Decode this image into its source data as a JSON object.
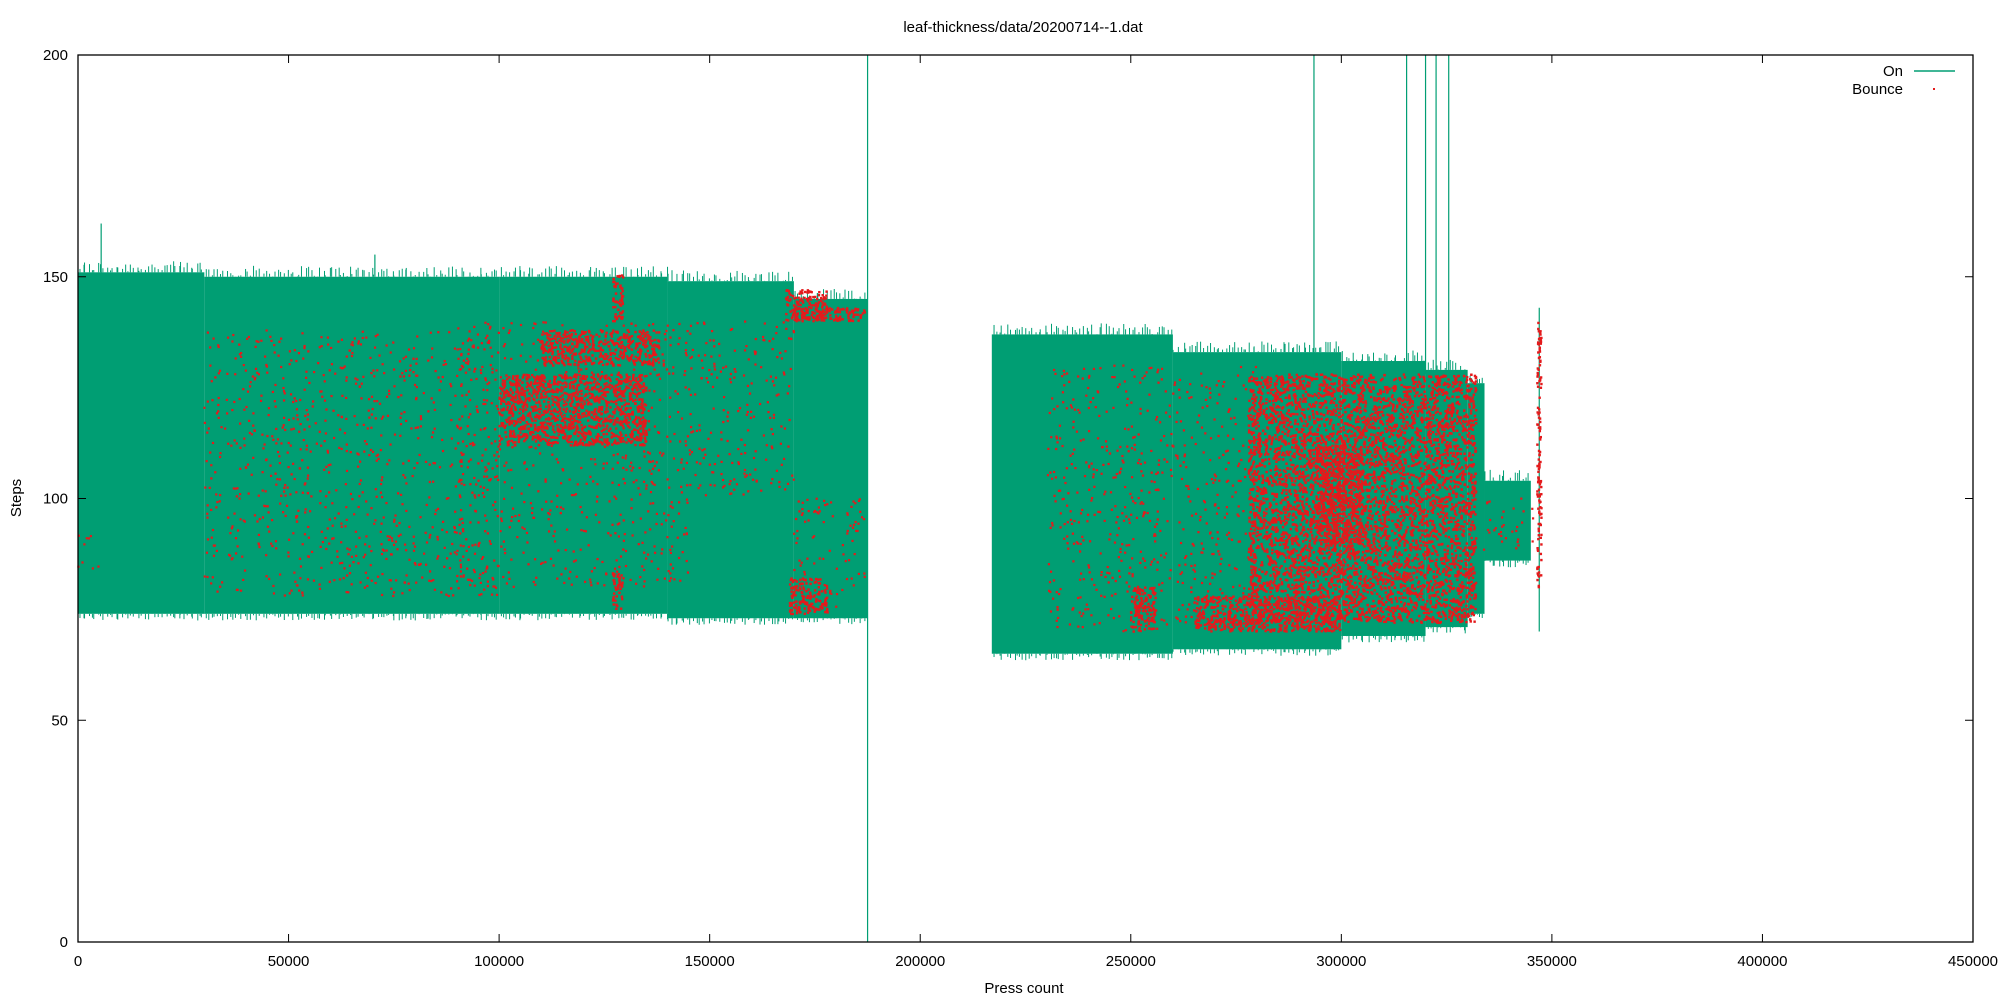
{
  "chart_data": {
    "type": "scatter",
    "title": "leaf-thickness/data/20200714--1.dat",
    "xlabel": "Press count",
    "ylabel": "Steps",
    "xlim": [
      0,
      450000
    ],
    "ylim": [
      0,
      200
    ],
    "x_ticks": [
      0,
      50000,
      100000,
      150000,
      200000,
      250000,
      300000,
      350000,
      400000,
      450000
    ],
    "y_ticks": [
      0,
      50,
      100,
      150,
      200
    ],
    "x_tick_labels": [
      "0",
      "50000",
      "100000",
      "150000",
      "200000",
      "250000",
      "300000",
      "350000",
      "400000",
      "450000"
    ],
    "y_tick_labels": [
      "0",
      "50",
      "100",
      "150",
      "200"
    ],
    "grid": false,
    "legend_position": "top-right",
    "series": [
      {
        "name": "On",
        "style": "lines",
        "color": "#009e73",
        "bands": [
          {
            "x_start": 0,
            "x_end": 30000,
            "y_low": 74,
            "y_high": 151
          },
          {
            "x_start": 30000,
            "x_end": 100000,
            "y_low": 74,
            "y_high": 150
          },
          {
            "x_start": 100000,
            "x_end": 140000,
            "y_low": 74,
            "y_high": 150
          },
          {
            "x_start": 140000,
            "x_end": 170000,
            "y_low": 73,
            "y_high": 149
          },
          {
            "x_start": 170000,
            "x_end": 187500,
            "y_low": 73,
            "y_high": 145
          },
          {
            "x_start": 217000,
            "x_end": 260000,
            "y_low": 65,
            "y_high": 137
          },
          {
            "x_start": 260000,
            "x_end": 300000,
            "y_low": 66,
            "y_high": 133
          },
          {
            "x_start": 300000,
            "x_end": 320000,
            "y_low": 69,
            "y_high": 131
          },
          {
            "x_start": 320000,
            "x_end": 330000,
            "y_low": 71,
            "y_high": 129
          },
          {
            "x_start": 330000,
            "x_end": 334000,
            "y_low": 74,
            "y_high": 126
          },
          {
            "x_start": 334000,
            "x_end": 345000,
            "y_low": 86,
            "y_high": 104
          }
        ],
        "spikes": [
          {
            "x": 5500,
            "y_low": 150,
            "y_high": 162
          },
          {
            "x": 70500,
            "y_low": 150,
            "y_high": 155
          },
          {
            "x": 187500,
            "y_low": 0,
            "y_high": 200
          },
          {
            "x": 293500,
            "y_low": 130,
            "y_high": 200
          },
          {
            "x": 315500,
            "y_low": 128,
            "y_high": 200
          },
          {
            "x": 320000,
            "y_low": 128,
            "y_high": 200
          },
          {
            "x": 322500,
            "y_low": 128,
            "y_high": 200
          },
          {
            "x": 325500,
            "y_low": 128,
            "y_high": 200
          },
          {
            "x": 347000,
            "y_low": 70,
            "y_high": 143
          }
        ]
      },
      {
        "name": "Bounce",
        "style": "points",
        "color": "#e41a1c",
        "regions": [
          {
            "x_start": 100000,
            "x_end": 135000,
            "y_low": 112,
            "y_high": 128
          },
          {
            "x_start": 110000,
            "x_end": 138000,
            "y_low": 130,
            "y_high": 138
          },
          {
            "x_start": 127000,
            "x_end": 129500,
            "y_low": 140,
            "y_high": 151
          },
          {
            "x_start": 127000,
            "x_end": 129500,
            "y_low": 75,
            "y_high": 83
          },
          {
            "x_start": 168000,
            "x_end": 178000,
            "y_low": 140,
            "y_high": 147
          },
          {
            "x_start": 170000,
            "x_end": 187000,
            "y_low": 140,
            "y_high": 143
          },
          {
            "x_start": 169000,
            "x_end": 178000,
            "y_low": 74,
            "y_high": 82
          },
          {
            "x_start": 250000,
            "x_end": 256000,
            "y_low": 70,
            "y_high": 80
          },
          {
            "x_start": 265000,
            "x_end": 300000,
            "y_low": 70,
            "y_high": 78
          },
          {
            "x_start": 278000,
            "x_end": 332000,
            "y_low": 72,
            "y_high": 128
          },
          {
            "x_start": 294000,
            "x_end": 305000,
            "y_low": 90,
            "y_high": 112
          },
          {
            "x_start": 346500,
            "x_end": 347500,
            "y_low": 80,
            "y_high": 140
          }
        ],
        "scatter_regions": [
          {
            "x_start": 0,
            "x_end": 5000,
            "y_low": 83,
            "y_high": 92
          },
          {
            "x_start": 30000,
            "x_end": 100000,
            "y_low": 78,
            "y_high": 138
          },
          {
            "x_start": 90000,
            "x_end": 145000,
            "y_low": 80,
            "y_high": 140
          },
          {
            "x_start": 145000,
            "x_end": 170000,
            "y_low": 100,
            "y_high": 140
          },
          {
            "x_start": 170000,
            "x_end": 187000,
            "y_low": 75,
            "y_high": 100
          },
          {
            "x_start": 230000,
            "x_end": 280000,
            "y_low": 70,
            "y_high": 130
          },
          {
            "x_start": 333000,
            "x_end": 346000,
            "y_low": 88,
            "y_high": 100
          }
        ]
      }
    ]
  }
}
